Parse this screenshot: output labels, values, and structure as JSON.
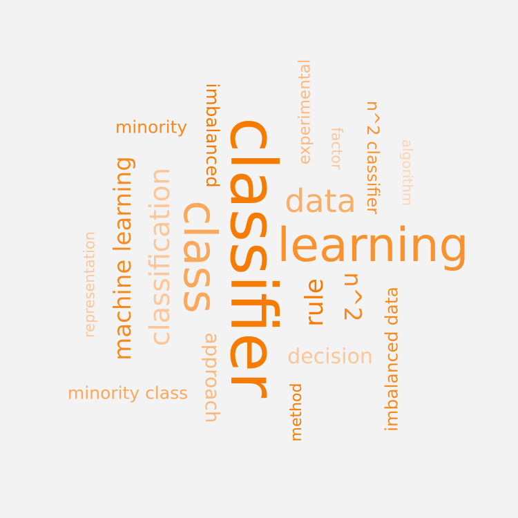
{
  "words": [
    {
      "text": "classifier",
      "color": "#f57c00"
    },
    {
      "text": "learning",
      "color": "#f8922e"
    },
    {
      "text": "class",
      "color": "#f9a85c"
    },
    {
      "text": "data",
      "color": "#f9ae6a"
    },
    {
      "text": "classification",
      "color": "#fbc79a"
    },
    {
      "text": "machine learning",
      "color": "#f68a1e"
    },
    {
      "text": "rule",
      "color": "#f57c00"
    },
    {
      "text": "n^2",
      "color": "#f68a1e"
    },
    {
      "text": "decision",
      "color": "#fbc79a"
    },
    {
      "text": "minority",
      "color": "#f68a1e"
    },
    {
      "text": "imbalanced",
      "color": "#f57c00"
    },
    {
      "text": "approach",
      "color": "#fbb87f"
    },
    {
      "text": "imbalanced data",
      "color": "#f68a1e"
    },
    {
      "text": "minority class",
      "color": "#f9a85c"
    },
    {
      "text": "representation",
      "color": "#fbc79a"
    },
    {
      "text": "experimental",
      "color": "#fbb87f"
    },
    {
      "text": "n^2 classifier",
      "color": "#f9922e"
    },
    {
      "text": "factor",
      "color": "#fbc79a"
    },
    {
      "text": "algorithm",
      "color": "#fcd3b0"
    },
    {
      "text": "method",
      "color": "#f57c00"
    }
  ]
}
